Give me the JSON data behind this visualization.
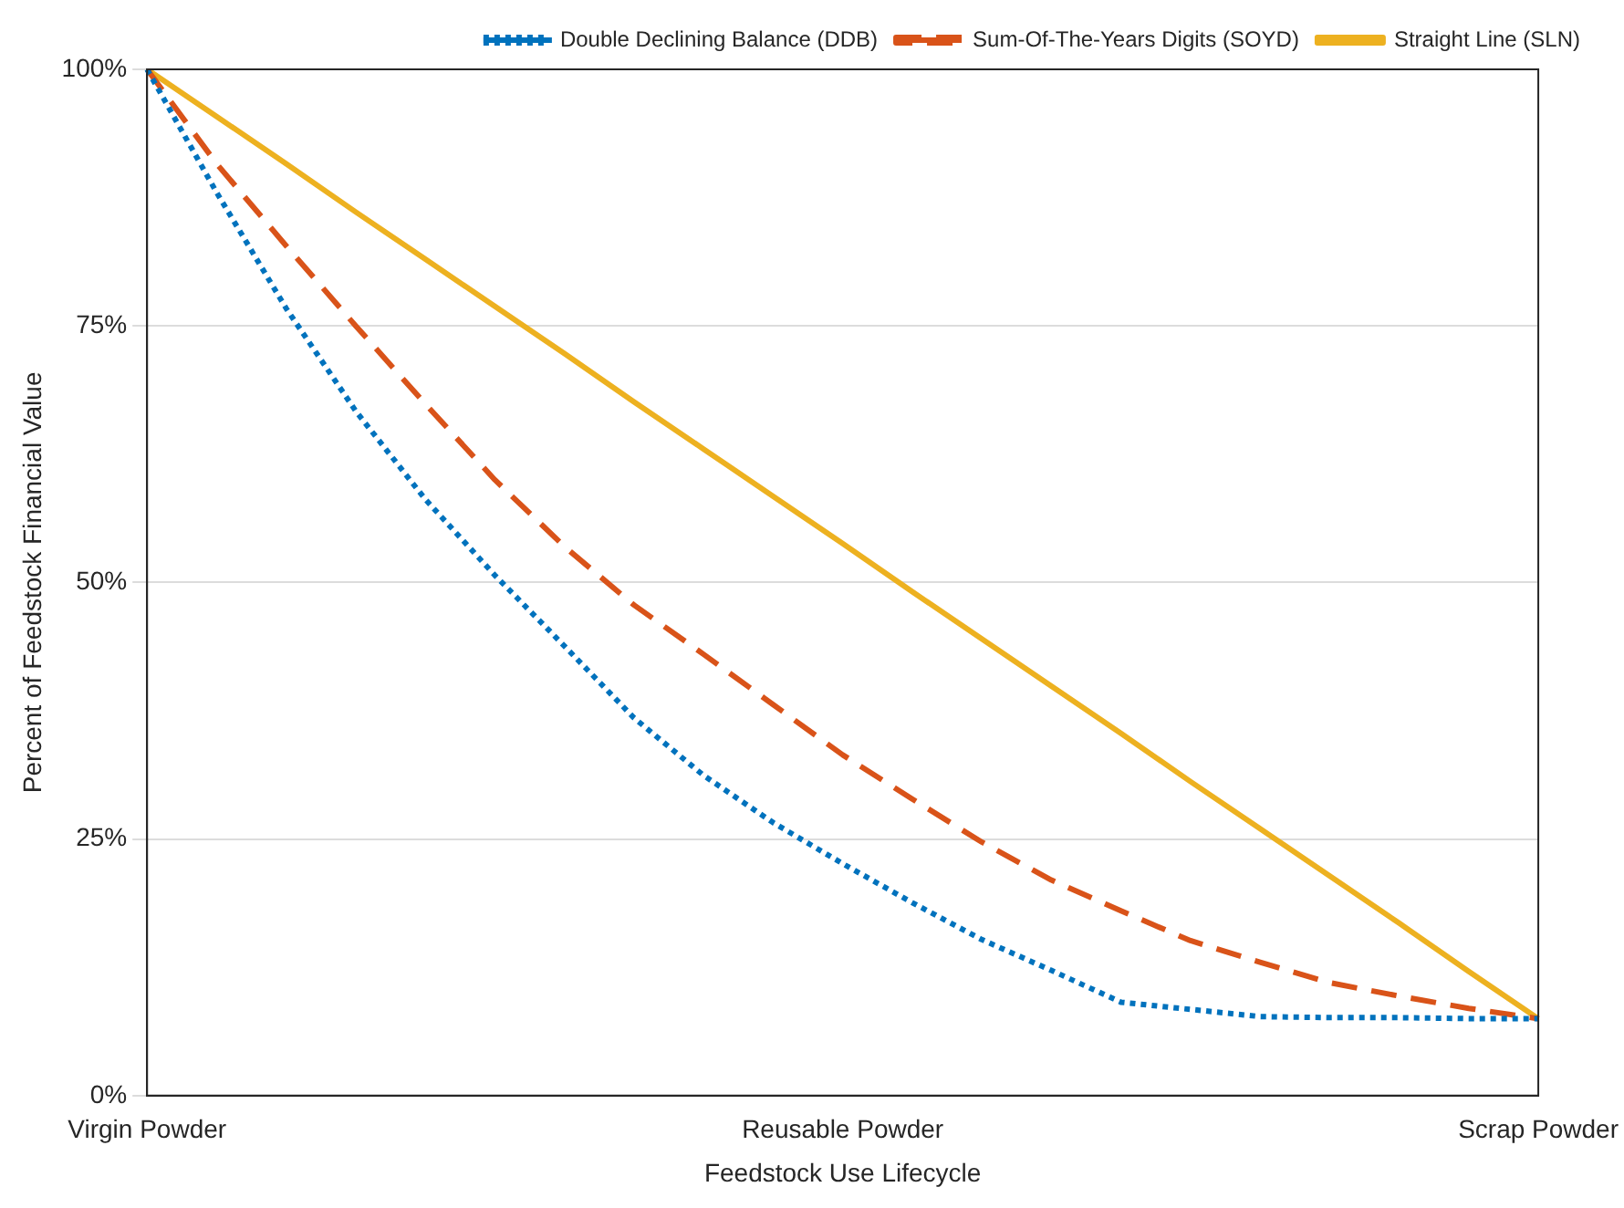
{
  "chart_data": {
    "type": "line",
    "xlabel": "Feedstock Use Lifecycle",
    "ylabel": "Percent of Feedstock Financial Value",
    "categories": [
      "Virgin Powder",
      null,
      null,
      null,
      null,
      null,
      null,
      null,
      null,
      null,
      "Reusable Powder",
      null,
      null,
      null,
      null,
      null,
      null,
      null,
      null,
      null,
      "Scrap Powder"
    ],
    "ylim": [
      0,
      100
    ],
    "yticks": [
      {
        "value": 0,
        "label": "0%"
      },
      {
        "value": 25,
        "label": "25%"
      },
      {
        "value": 50,
        "label": "50%"
      },
      {
        "value": 75,
        "label": "75%"
      },
      {
        "value": 100,
        "label": "100%"
      }
    ],
    "grid": "y",
    "legend": "top right",
    "marker": "none",
    "series": [
      {
        "name": "Double Declining Balance (DDB)",
        "color": "#0072bd",
        "line_style": "dotted",
        "values": [
          100,
          88,
          76.7,
          66.7,
          58.1,
          50.7,
          43.8,
          36.8,
          31.2,
          26.6,
          22.6,
          18.8,
          15.2,
          12.2,
          9.1,
          8.4,
          7.7,
          7.6,
          7.6,
          7.5,
          7.5
        ]
      },
      {
        "name": "Sum-Of-The-Years Digits (SOYD)",
        "color": "#d95319",
        "line_style": "dashed",
        "values": [
          100,
          90.8,
          82.8,
          75,
          67.4,
          60,
          53.5,
          47.8,
          43,
          38.1,
          33.2,
          28.9,
          24.7,
          21,
          18,
          15.1,
          13,
          11,
          9.7,
          8.5,
          7.5
        ]
      },
      {
        "name": "Straight Line (SLN)",
        "color": "#edb120",
        "line_style": "solid",
        "values": [
          100,
          95.4,
          90.8,
          86.1,
          81.5,
          76.9,
          72.3,
          67.6,
          63,
          58.4,
          53.8,
          49.1,
          44.5,
          39.9,
          35.3,
          30.6,
          26,
          21.4,
          16.8,
          12.1,
          7.5
        ]
      }
    ]
  }
}
